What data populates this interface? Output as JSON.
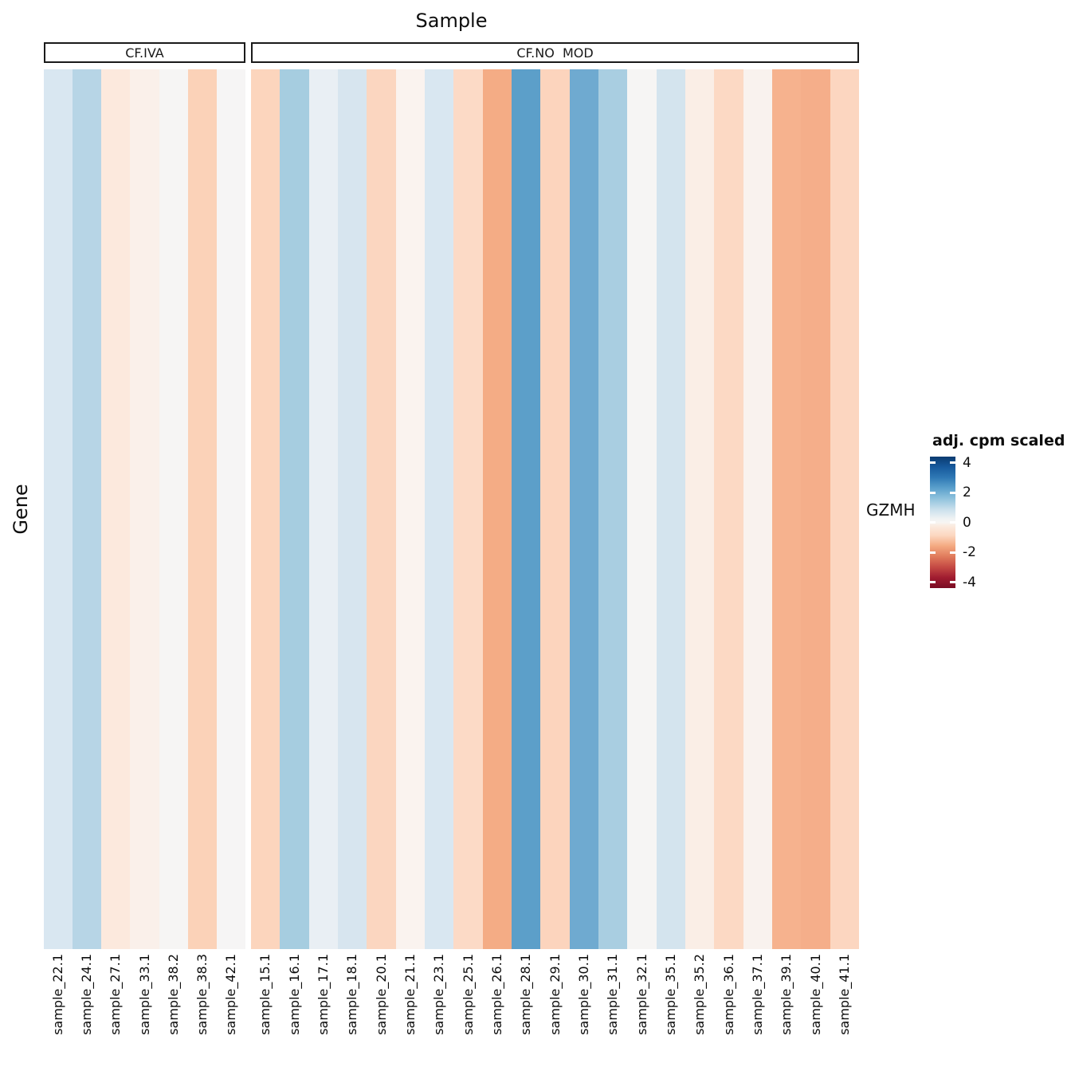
{
  "title": "Sample",
  "ylabel": "Gene",
  "chart_data": {
    "type": "heatmap",
    "title": "Sample",
    "xlabel": "Sample",
    "ylabel": "Gene",
    "rows": [
      "GZMH"
    ],
    "grid": false,
    "legend_position": "right",
    "facets": [
      {
        "label": "CF.IVA",
        "samples": [
          "sample_22.1",
          "sample_24.1",
          "sample_27.1",
          "sample_33.1",
          "sample_38.2",
          "sample_38.3",
          "sample_42.1"
        ],
        "values": [
          0.8,
          1.4,
          -0.55,
          -0.3,
          0.05,
          -1.15,
          0.05
        ],
        "colors": [
          "#d9e7f1",
          "#b7d5e6",
          "#fce9dd",
          "#faf0ea",
          "#f6f5f4",
          "#fbd2b8",
          "#f6f5f5"
        ]
      },
      {
        "label": "CF.NO  MOD",
        "samples": [
          "sample_15.1",
          "sample_16.1",
          "sample_17.1",
          "sample_18.1",
          "sample_20.1",
          "sample_21.1",
          "sample_23.1",
          "sample_25.1",
          "sample_26.1",
          "sample_28.1",
          "sample_29.1",
          "sample_30.1",
          "sample_31.1",
          "sample_32.1",
          "sample_35.1",
          "sample_35.2",
          "sample_36.1",
          "sample_37.1",
          "sample_39.1",
          "sample_40.1",
          "sample_41.1"
        ],
        "values": [
          -1.0,
          1.7,
          0.45,
          0.8,
          -0.95,
          -0.15,
          0.75,
          -0.85,
          -1.85,
          2.8,
          -1.0,
          2.6,
          1.65,
          0.05,
          0.85,
          -0.35,
          -0.9,
          -0.2,
          -1.7,
          -1.8,
          -0.95
        ],
        "colors": [
          "#fcd5bd",
          "#a6cde0",
          "#e9eff4",
          "#d7e5ef",
          "#fbd6c0",
          "#faf3ef",
          "#d9e7f1",
          "#fcdac6",
          "#f4ac85",
          "#5c9fc9",
          "#fcd4bd",
          "#6faad0",
          "#a9cee1",
          "#f6f5f4",
          "#d4e4ee",
          "#faeee6",
          "#fcd9c4",
          "#f9f2ee",
          "#f6b28e",
          "#f5ae8a",
          "#fcd6c0"
        ]
      }
    ],
    "legend": {
      "title": "adj. cpm scaled",
      "tick_labels": [
        "4",
        "2",
        "0",
        "-2",
        "-4"
      ],
      "tick_values": [
        4,
        2,
        0,
        -2,
        -4
      ],
      "range": [
        -4.4,
        4.4
      ],
      "colormap": "RdBu",
      "colors": {
        "high": "#053061",
        "mid": "#f7f7f7",
        "low": "#67001f"
      }
    }
  }
}
